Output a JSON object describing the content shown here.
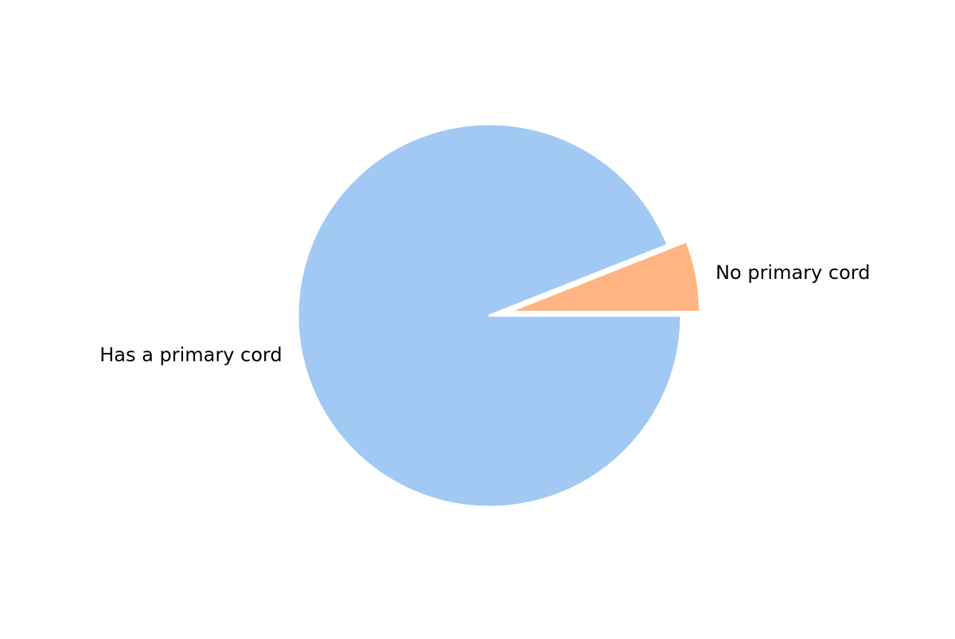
{
  "chart_data": {
    "type": "pie",
    "title": "",
    "slices": [
      {
        "label": "Has a primary cord",
        "value": 94,
        "color": "#a1c9f4",
        "exploded": false
      },
      {
        "label": "No primary cord",
        "value": 6,
        "color": "#ffb482",
        "exploded": true
      }
    ],
    "start_angle": "0 degrees (3 o'clock), clockwise",
    "legend": "none",
    "slice_edge_color": "#ffffff"
  }
}
